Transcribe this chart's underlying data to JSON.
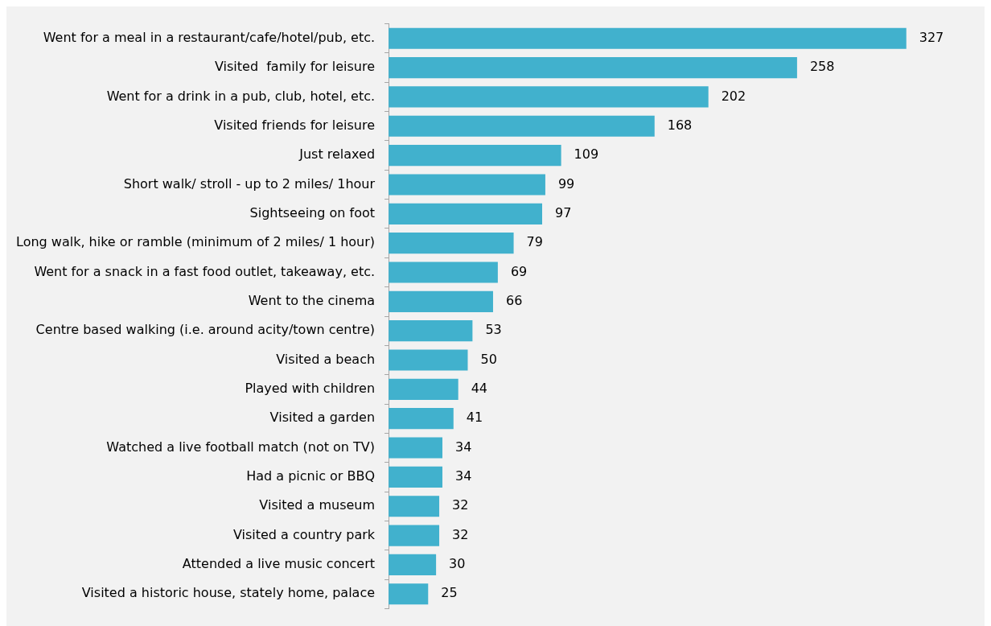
{
  "chart_data": {
    "type": "bar",
    "orientation": "horizontal",
    "categories": [
      "Went for a meal in a restaurant/cafe/hotel/pub, etc.",
      "Visited  family for leisure",
      "Went for a drink in a pub, club, hotel, etc.",
      "Visited friends for leisure",
      "Just relaxed",
      "Short walk/ stroll - up to 2 miles/ 1hour",
      "Sightseeing on foot",
      "Long walk, hike or ramble (minimum of 2 miles/ 1 hour)",
      "Went for a snack in a fast food outlet, takeaway, etc.",
      "Went to the cinema",
      "Centre based walking (i.e. around acity/town centre)",
      "Visited a beach",
      "Played with children",
      "Visited a garden",
      "Watched a live football match (not on TV)",
      "Had a picnic or BBQ",
      "Visited a museum",
      "Visited a country park",
      "Attended a live music concert",
      "Visited a historic house, stately home, palace"
    ],
    "values": [
      327,
      258,
      202,
      168,
      109,
      99,
      97,
      79,
      69,
      66,
      53,
      50,
      44,
      41,
      34,
      34,
      32,
      32,
      30,
      25
    ],
    "color": "#41b1cd",
    "data_labels": true,
    "legend": false
  }
}
